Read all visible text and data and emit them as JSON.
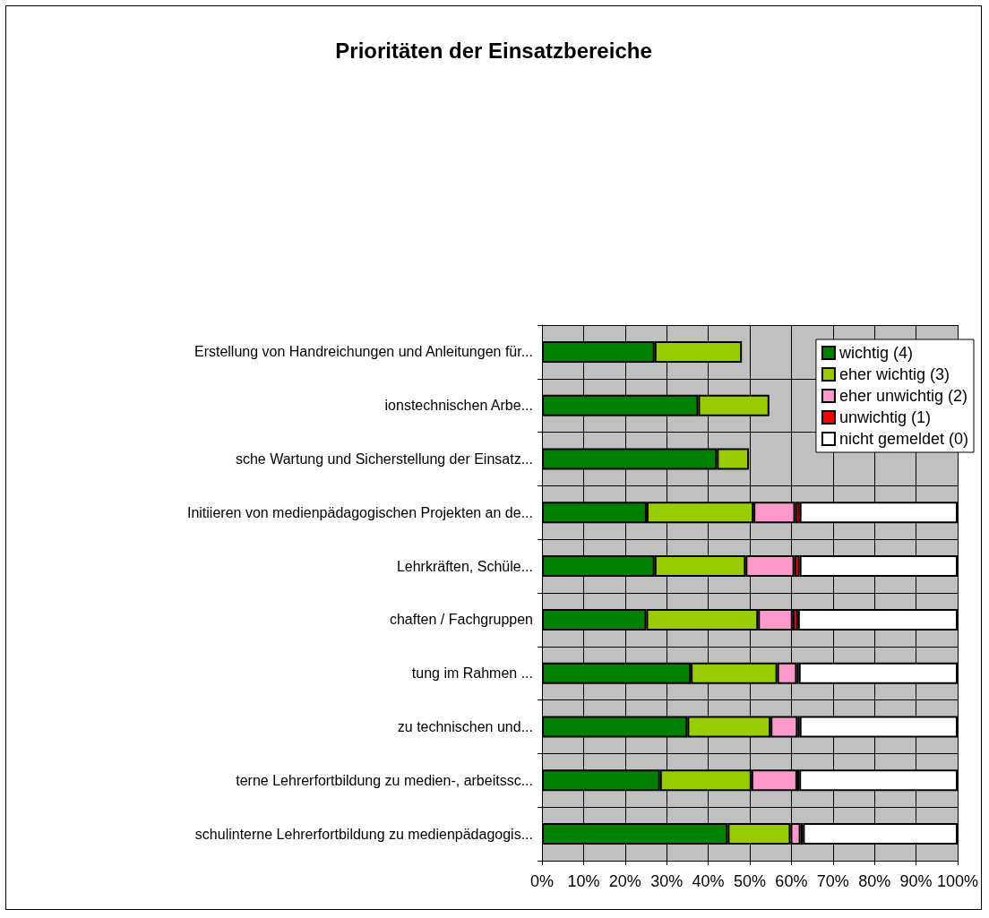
{
  "chart_data": {
    "type": "bar",
    "title": "Prioritäten der Einsatzbereiche",
    "orientation": "horizontal",
    "stacked": true,
    "categories": [
      "Erstellung von Handreichungen und Anleitungen für...",
      "ionstechnischen Arbe...",
      "sche Wartung und Sicherstellung der Einsatz...",
      "Initiieren von medienpädagogischen Projekten an de...",
      "Lehrkräften, Schüle...",
      "chaften / Fachgruppen",
      "tung im Rahmen ...",
      "zu technischen und...",
      "terne Lehrerfortbildung zu medien-, arbeitssc...",
      "schulinterne Lehrerfortbildung zu medienpädagogis..."
    ],
    "series": [
      {
        "name": "wichtig (4)",
        "color": "#008000",
        "values": [
          27.1,
          37.6,
          42.1,
          25.2,
          27.1,
          25.1,
          35.8,
          35.0,
          28.4,
          44.7
        ]
      },
      {
        "name": "eher wichtig (3)",
        "color": "#99cc00",
        "values": [
          21.0,
          17.1,
          7.7,
          25.7,
          21.9,
          26.9,
          20.8,
          20.0,
          22.0,
          15.1
        ]
      },
      {
        "name": "eher unwichtig (2)",
        "color": "#ff99cc",
        "values": [
          null,
          null,
          null,
          10.0,
          11.7,
          8.3,
          4.7,
          6.5,
          11.0,
          2.4
        ]
      },
      {
        "name": "unwichtig (1)",
        "color": "#ff0000",
        "values": [
          null,
          null,
          null,
          1.1,
          1.3,
          1.3,
          0.5,
          0.5,
          0.5,
          0.6
        ]
      },
      {
        "name": "nicht gemeldet (0)",
        "color": "#ffffff",
        "values": [
          null,
          null,
          null,
          38.0,
          38.0,
          38.4,
          38.2,
          38.0,
          38.1,
          37.2
        ]
      }
    ],
    "xlim": [
      0,
      100
    ],
    "xticks": [
      {
        "value": 0,
        "label": "0%"
      },
      {
        "value": 10,
        "label": "10%"
      },
      {
        "value": 20,
        "label": "20%"
      },
      {
        "value": 30,
        "label": "30%"
      },
      {
        "value": 40,
        "label": "40%"
      },
      {
        "value": 50,
        "label": "50%"
      },
      {
        "value": 60,
        "label": "60%"
      },
      {
        "value": 70,
        "label": "70%"
      },
      {
        "value": 80,
        "label": "80%"
      },
      {
        "value": 90,
        "label": "90%"
      },
      {
        "value": 100,
        "label": "100%"
      }
    ],
    "grid": true,
    "legend": "top right"
  }
}
